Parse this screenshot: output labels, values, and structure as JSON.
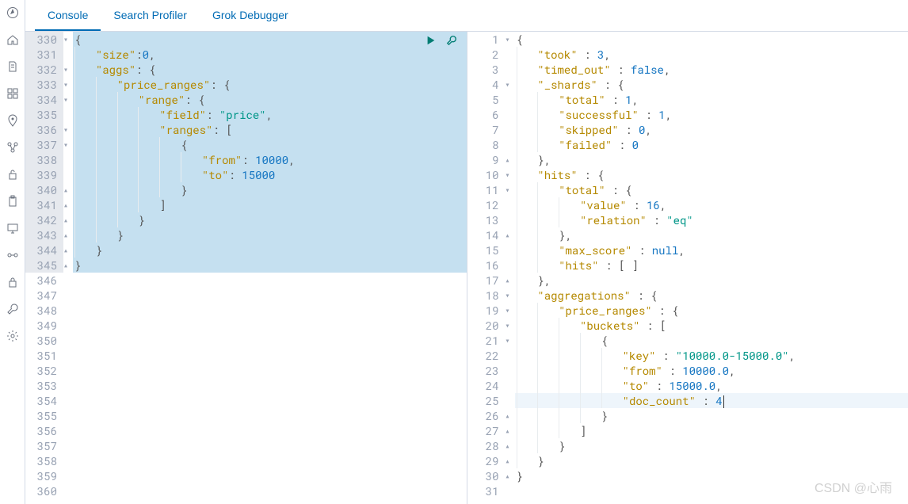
{
  "tabs": {
    "items": [
      {
        "label": "Console",
        "active": true
      },
      {
        "label": "Search Profiler",
        "active": false
      },
      {
        "label": "Grok Debugger",
        "active": false
      }
    ]
  },
  "leftNav": {
    "icons": [
      "compass-icon",
      "home-icon",
      "document-icon",
      "dashboard-icon",
      "location-icon",
      "services-icon",
      "lock-open-icon",
      "clipboard-icon",
      "monitor-icon",
      "pipeline-icon",
      "lock-icon",
      "wrench-icon",
      "gear-icon"
    ]
  },
  "request": {
    "startLine": 330,
    "highlightStart": 330,
    "highlightEnd": 345,
    "lines": [
      {
        "n": 330,
        "fold": "▾",
        "indent": 0,
        "tokens": [
          [
            "punct",
            "{"
          ]
        ]
      },
      {
        "n": 331,
        "fold": "",
        "indent": 1,
        "tokens": [
          [
            "key",
            "\"size\""
          ],
          [
            "punct",
            ":"
          ],
          [
            "num",
            "0"
          ],
          [
            "punct",
            ","
          ]
        ]
      },
      {
        "n": 332,
        "fold": "▾",
        "indent": 1,
        "tokens": [
          [
            "key",
            "\"aggs\""
          ],
          [
            "punct",
            ": "
          ],
          [
            "punct",
            "{"
          ]
        ]
      },
      {
        "n": 333,
        "fold": "▾",
        "indent": 2,
        "tokens": [
          [
            "key",
            "\"price_ranges\""
          ],
          [
            "punct",
            ": "
          ],
          [
            "punct",
            "{"
          ]
        ]
      },
      {
        "n": 334,
        "fold": "▾",
        "indent": 3,
        "tokens": [
          [
            "key",
            "\"range\""
          ],
          [
            "punct",
            ": "
          ],
          [
            "punct",
            "{"
          ]
        ]
      },
      {
        "n": 335,
        "fold": "",
        "indent": 4,
        "tokens": [
          [
            "key",
            "\"field\""
          ],
          [
            "punct",
            ": "
          ],
          [
            "str",
            "\"price\""
          ],
          [
            "punct",
            ","
          ]
        ]
      },
      {
        "n": 336,
        "fold": "▾",
        "indent": 4,
        "tokens": [
          [
            "key",
            "\"ranges\""
          ],
          [
            "punct",
            ": "
          ],
          [
            "punct",
            "["
          ]
        ]
      },
      {
        "n": 337,
        "fold": "▾",
        "indent": 5,
        "tokens": [
          [
            "punct",
            "{"
          ]
        ]
      },
      {
        "n": 338,
        "fold": "",
        "indent": 6,
        "tokens": [
          [
            "key",
            "\"from\""
          ],
          [
            "punct",
            ": "
          ],
          [
            "num",
            "10000"
          ],
          [
            "punct",
            ","
          ]
        ]
      },
      {
        "n": 339,
        "fold": "",
        "indent": 6,
        "tokens": [
          [
            "key",
            "\"to\""
          ],
          [
            "punct",
            ": "
          ],
          [
            "num",
            "15000"
          ]
        ]
      },
      {
        "n": 340,
        "fold": "▴",
        "indent": 5,
        "tokens": [
          [
            "punct",
            "}"
          ]
        ]
      },
      {
        "n": 341,
        "fold": "▴",
        "indent": 4,
        "tokens": [
          [
            "punct",
            "]"
          ]
        ]
      },
      {
        "n": 342,
        "fold": "▴",
        "indent": 3,
        "tokens": [
          [
            "punct",
            "}"
          ]
        ]
      },
      {
        "n": 343,
        "fold": "▴",
        "indent": 2,
        "tokens": [
          [
            "punct",
            "}"
          ]
        ]
      },
      {
        "n": 344,
        "fold": "▴",
        "indent": 1,
        "tokens": [
          [
            "punct",
            "}"
          ]
        ]
      },
      {
        "n": 345,
        "fold": "▴",
        "indent": 0,
        "tokens": [
          [
            "punct",
            "}"
          ]
        ]
      },
      {
        "n": 346,
        "fold": "",
        "indent": 0,
        "tokens": []
      },
      {
        "n": 347,
        "fold": "",
        "indent": 0,
        "tokens": []
      },
      {
        "n": 348,
        "fold": "",
        "indent": 0,
        "tokens": []
      },
      {
        "n": 349,
        "fold": "",
        "indent": 0,
        "tokens": []
      },
      {
        "n": 350,
        "fold": "",
        "indent": 0,
        "tokens": []
      },
      {
        "n": 351,
        "fold": "",
        "indent": 0,
        "tokens": []
      },
      {
        "n": 352,
        "fold": "",
        "indent": 0,
        "tokens": []
      },
      {
        "n": 353,
        "fold": "",
        "indent": 0,
        "tokens": []
      },
      {
        "n": 354,
        "fold": "",
        "indent": 0,
        "tokens": []
      },
      {
        "n": 355,
        "fold": "",
        "indent": 0,
        "tokens": []
      },
      {
        "n": 356,
        "fold": "",
        "indent": 0,
        "tokens": []
      },
      {
        "n": 357,
        "fold": "",
        "indent": 0,
        "tokens": []
      },
      {
        "n": 358,
        "fold": "",
        "indent": 0,
        "tokens": []
      },
      {
        "n": 359,
        "fold": "",
        "indent": 0,
        "tokens": []
      },
      {
        "n": 360,
        "fold": "",
        "indent": 0,
        "tokens": []
      }
    ]
  },
  "response": {
    "highlightLine": 25,
    "lines": [
      {
        "n": 1,
        "fold": "▾",
        "indent": 0,
        "tokens": [
          [
            "punct",
            "{"
          ]
        ]
      },
      {
        "n": 2,
        "fold": "",
        "indent": 1,
        "tokens": [
          [
            "key",
            "\"took\""
          ],
          [
            "punct",
            " : "
          ],
          [
            "num",
            "3"
          ],
          [
            "punct",
            ","
          ]
        ]
      },
      {
        "n": 3,
        "fold": "",
        "indent": 1,
        "tokens": [
          [
            "key",
            "\"timed_out\""
          ],
          [
            "punct",
            " : "
          ],
          [
            "bool",
            "false"
          ],
          [
            "punct",
            ","
          ]
        ]
      },
      {
        "n": 4,
        "fold": "▾",
        "indent": 1,
        "tokens": [
          [
            "key",
            "\"_shards\""
          ],
          [
            "punct",
            " : "
          ],
          [
            "punct",
            "{"
          ]
        ]
      },
      {
        "n": 5,
        "fold": "",
        "indent": 2,
        "tokens": [
          [
            "key",
            "\"total\""
          ],
          [
            "punct",
            " : "
          ],
          [
            "num",
            "1"
          ],
          [
            "punct",
            ","
          ]
        ]
      },
      {
        "n": 6,
        "fold": "",
        "indent": 2,
        "tokens": [
          [
            "key",
            "\"successful\""
          ],
          [
            "punct",
            " : "
          ],
          [
            "num",
            "1"
          ],
          [
            "punct",
            ","
          ]
        ]
      },
      {
        "n": 7,
        "fold": "",
        "indent": 2,
        "tokens": [
          [
            "key",
            "\"skipped\""
          ],
          [
            "punct",
            " : "
          ],
          [
            "num",
            "0"
          ],
          [
            "punct",
            ","
          ]
        ]
      },
      {
        "n": 8,
        "fold": "",
        "indent": 2,
        "tokens": [
          [
            "key",
            "\"failed\""
          ],
          [
            "punct",
            " : "
          ],
          [
            "num",
            "0"
          ]
        ]
      },
      {
        "n": 9,
        "fold": "▴",
        "indent": 1,
        "tokens": [
          [
            "punct",
            "},"
          ]
        ]
      },
      {
        "n": 10,
        "fold": "▾",
        "indent": 1,
        "tokens": [
          [
            "key",
            "\"hits\""
          ],
          [
            "punct",
            " : "
          ],
          [
            "punct",
            "{"
          ]
        ]
      },
      {
        "n": 11,
        "fold": "▾",
        "indent": 2,
        "tokens": [
          [
            "key",
            "\"total\""
          ],
          [
            "punct",
            " : "
          ],
          [
            "punct",
            "{"
          ]
        ]
      },
      {
        "n": 12,
        "fold": "",
        "indent": 3,
        "tokens": [
          [
            "key",
            "\"value\""
          ],
          [
            "punct",
            " : "
          ],
          [
            "num",
            "16"
          ],
          [
            "punct",
            ","
          ]
        ]
      },
      {
        "n": 13,
        "fold": "",
        "indent": 3,
        "tokens": [
          [
            "key",
            "\"relation\""
          ],
          [
            "punct",
            " : "
          ],
          [
            "str",
            "\"eq\""
          ]
        ]
      },
      {
        "n": 14,
        "fold": "▴",
        "indent": 2,
        "tokens": [
          [
            "punct",
            "},"
          ]
        ]
      },
      {
        "n": 15,
        "fold": "",
        "indent": 2,
        "tokens": [
          [
            "key",
            "\"max_score\""
          ],
          [
            "punct",
            " : "
          ],
          [
            "null",
            "null"
          ],
          [
            "punct",
            ","
          ]
        ]
      },
      {
        "n": 16,
        "fold": "",
        "indent": 2,
        "tokens": [
          [
            "key",
            "\"hits\""
          ],
          [
            "punct",
            " : "
          ],
          [
            "punct",
            "[ ]"
          ]
        ]
      },
      {
        "n": 17,
        "fold": "▴",
        "indent": 1,
        "tokens": [
          [
            "punct",
            "},"
          ]
        ]
      },
      {
        "n": 18,
        "fold": "▾",
        "indent": 1,
        "tokens": [
          [
            "key",
            "\"aggregations\""
          ],
          [
            "punct",
            " : "
          ],
          [
            "punct",
            "{"
          ]
        ]
      },
      {
        "n": 19,
        "fold": "▾",
        "indent": 2,
        "tokens": [
          [
            "key",
            "\"price_ranges\""
          ],
          [
            "punct",
            " : "
          ],
          [
            "punct",
            "{"
          ]
        ]
      },
      {
        "n": 20,
        "fold": "▾",
        "indent": 3,
        "tokens": [
          [
            "key",
            "\"buckets\""
          ],
          [
            "punct",
            " : "
          ],
          [
            "punct",
            "["
          ]
        ]
      },
      {
        "n": 21,
        "fold": "▾",
        "indent": 4,
        "tokens": [
          [
            "punct",
            "{"
          ]
        ]
      },
      {
        "n": 22,
        "fold": "",
        "indent": 5,
        "tokens": [
          [
            "key",
            "\"key\""
          ],
          [
            "punct",
            " : "
          ],
          [
            "str",
            "\"10000.0-15000.0\""
          ],
          [
            "punct",
            ","
          ]
        ]
      },
      {
        "n": 23,
        "fold": "",
        "indent": 5,
        "tokens": [
          [
            "key",
            "\"from\""
          ],
          [
            "punct",
            " : "
          ],
          [
            "num",
            "10000.0"
          ],
          [
            "punct",
            ","
          ]
        ]
      },
      {
        "n": 24,
        "fold": "",
        "indent": 5,
        "tokens": [
          [
            "key",
            "\"to\""
          ],
          [
            "punct",
            " : "
          ],
          [
            "num",
            "15000.0"
          ],
          [
            "punct",
            ","
          ]
        ]
      },
      {
        "n": 25,
        "fold": "",
        "indent": 5,
        "tokens": [
          [
            "key",
            "\"doc_count\""
          ],
          [
            "punct",
            " : "
          ],
          [
            "num",
            "4"
          ]
        ],
        "cursor": true
      },
      {
        "n": 26,
        "fold": "▴",
        "indent": 4,
        "tokens": [
          [
            "punct",
            "}"
          ]
        ]
      },
      {
        "n": 27,
        "fold": "▴",
        "indent": 3,
        "tokens": [
          [
            "punct",
            "]"
          ]
        ]
      },
      {
        "n": 28,
        "fold": "▴",
        "indent": 2,
        "tokens": [
          [
            "punct",
            "}"
          ]
        ]
      },
      {
        "n": 29,
        "fold": "▴",
        "indent": 1,
        "tokens": [
          [
            "punct",
            "}"
          ]
        ]
      },
      {
        "n": 30,
        "fold": "▴",
        "indent": 0,
        "tokens": [
          [
            "punct",
            "}"
          ]
        ]
      },
      {
        "n": 31,
        "fold": "",
        "indent": 0,
        "tokens": []
      }
    ]
  },
  "watermark": "CSDN @心雨⁠⁠⁠⁠"
}
